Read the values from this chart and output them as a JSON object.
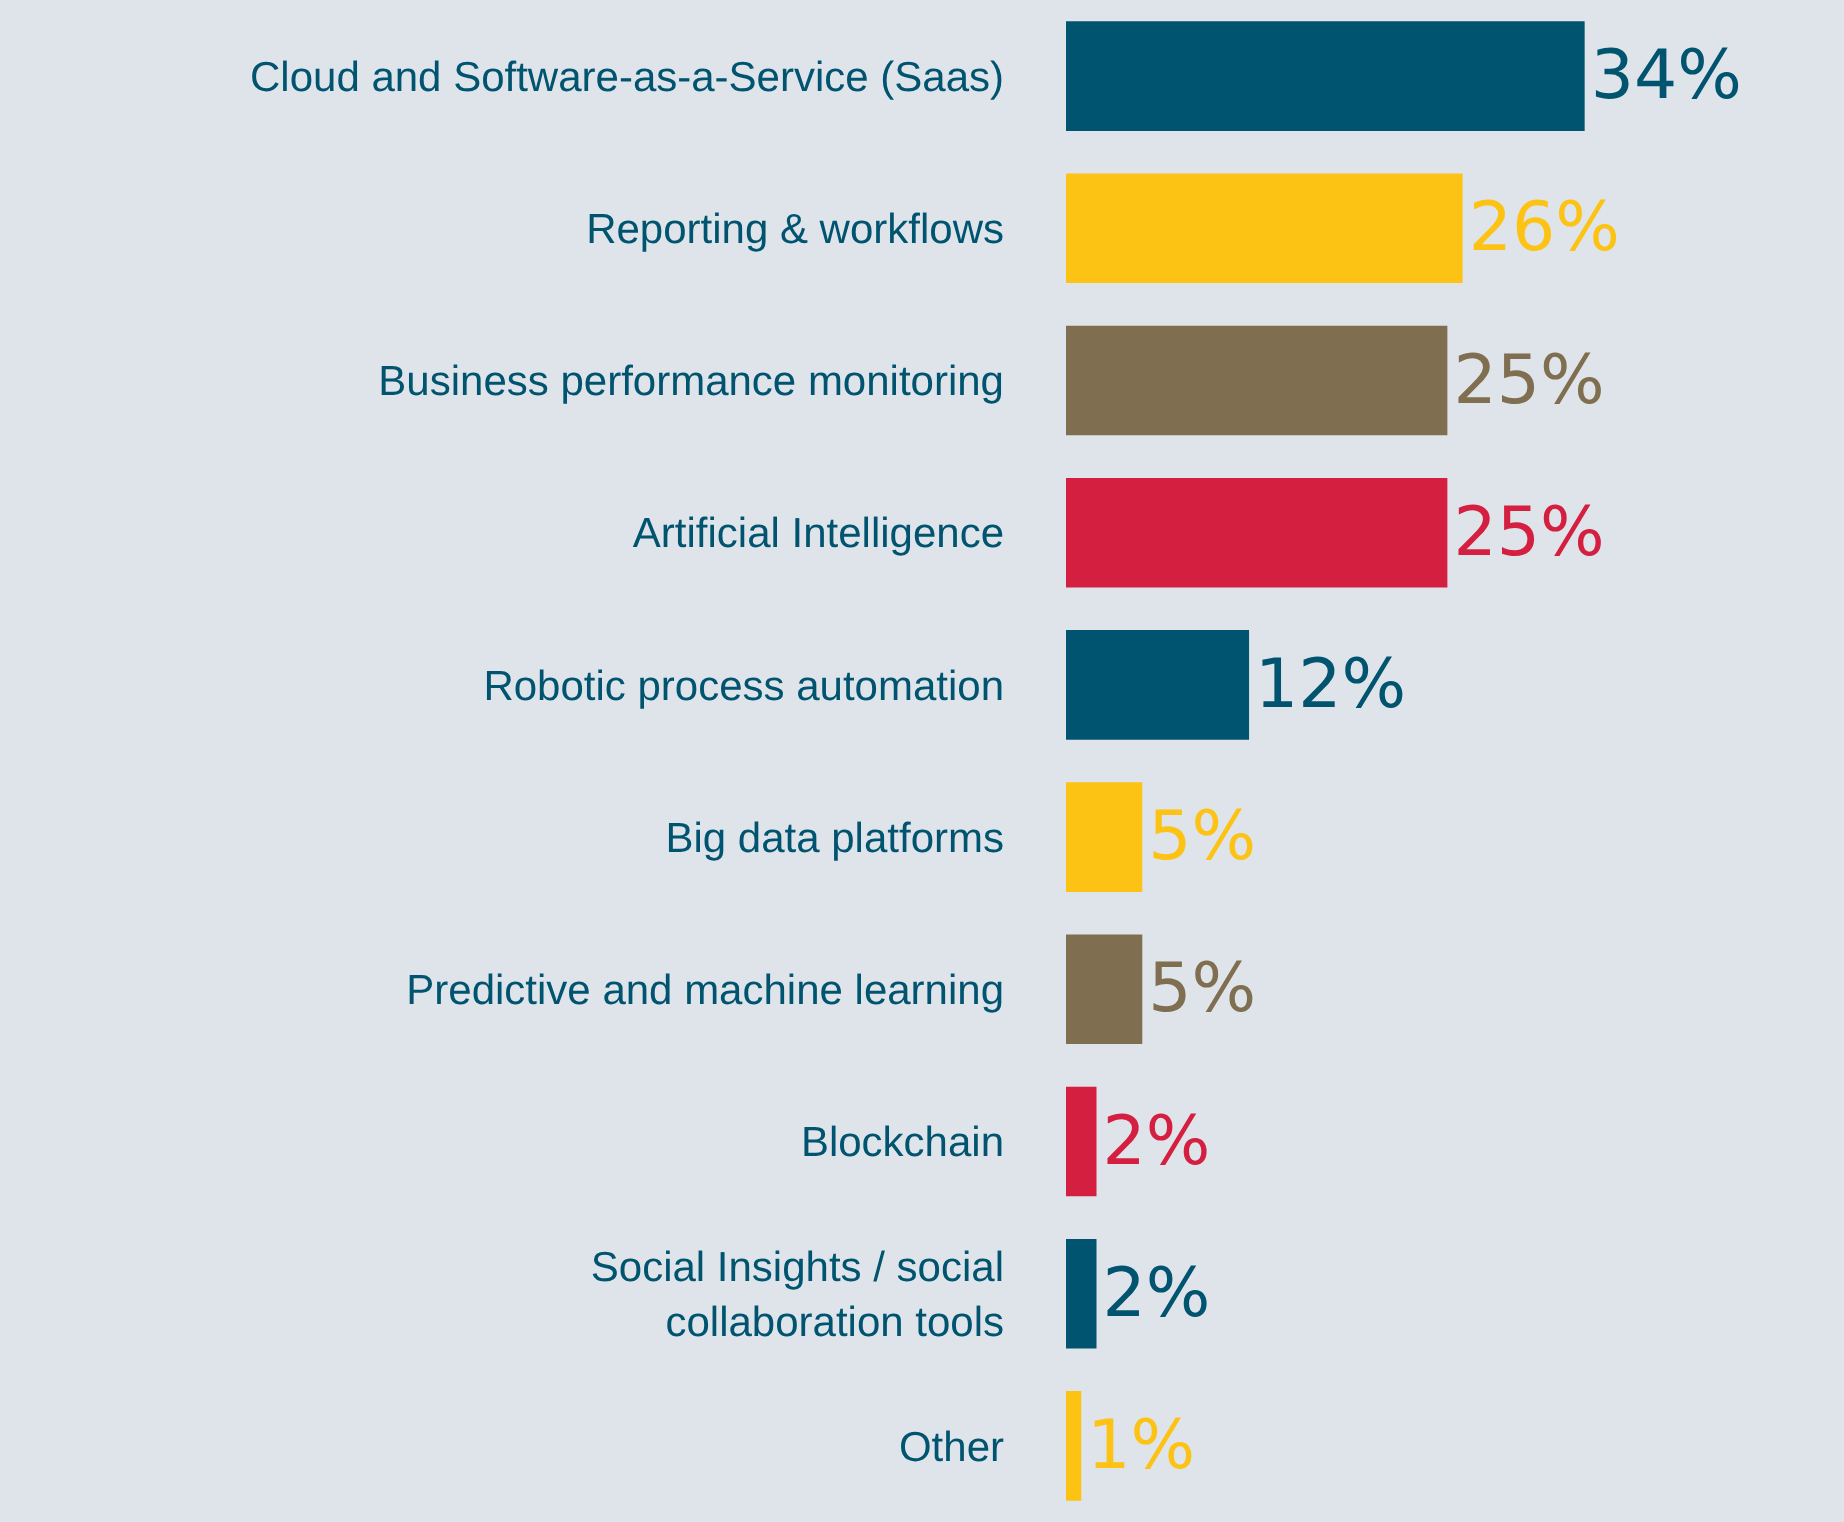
{
  "chart_data": {
    "type": "bar",
    "orientation": "horizontal",
    "categories": [
      "Cloud and Software-as-a-Service (Saas)",
      "Reporting & workflows",
      "Business performance monitoring",
      "Artificial Intelligence",
      "Robotic process automation",
      "Big data platforms",
      "Predictive and machine learning",
      "Blockchain",
      "Social Insights / social\ncollaboration tools",
      "Other"
    ],
    "values": [
      34,
      26,
      25,
      25,
      12,
      5,
      5,
      2,
      2,
      1
    ],
    "colors": [
      "#00546f",
      "#fcc314",
      "#7f6e50",
      "#d51f41",
      "#00546f",
      "#fcc314",
      "#7f6e50",
      "#d51f41",
      "#00546f",
      "#fcc314"
    ],
    "value_labels": [
      "34%",
      "26%",
      "25%",
      "25%",
      "12%",
      "5%",
      "5%",
      "2%",
      "2%",
      "1%"
    ],
    "tick_labels": "y",
    "grid": false,
    "legend": false
  }
}
